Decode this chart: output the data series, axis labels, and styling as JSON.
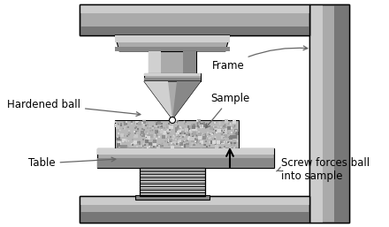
{
  "bg_color": "#ffffff",
  "frame_color": "#aaaaaa",
  "frame_dark": "#777777",
  "frame_light": "#cccccc",
  "metal_dark": "#888888",
  "metal_mid": "#aaaaaa",
  "metal_light": "#d0d0d0",
  "sample_color": "#c0c0c0",
  "spring_dark": "#888888",
  "spring_light": "#dddddd",
  "labels": {
    "hardened_ball": "Hardened ball",
    "frame": "Frame",
    "sample": "Sample",
    "table": "Table",
    "screw": "Screw forces ball\ninto sample"
  }
}
